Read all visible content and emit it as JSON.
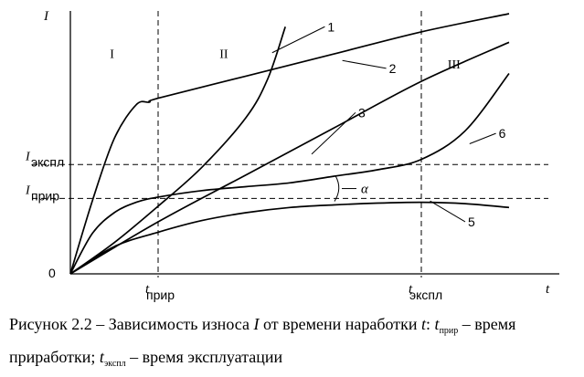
{
  "chart_data": {
    "type": "line",
    "title": "",
    "xlabel": "t",
    "ylabel": "I",
    "origin_label": "0",
    "xlim": [
      0,
      10
    ],
    "ylim": [
      0,
      10
    ],
    "grid": false,
    "legend": "none",
    "x_ticks": [
      {
        "x": 2.0,
        "main": "t",
        "sub": "прир"
      },
      {
        "x": 8.0,
        "main": "t",
        "sub": "экспл"
      }
    ],
    "y_ticks": [
      {
        "y": 4.2,
        "main": "I",
        "sub": "экспл"
      },
      {
        "y": 2.9,
        "main": "I",
        "sub": "прир"
      }
    ],
    "regions": [
      {
        "label": "I",
        "x": 0.9,
        "y": 8.3
      },
      {
        "label": "II",
        "x": 3.4,
        "y": 8.3
      },
      {
        "label": "III",
        "x": 8.6,
        "y": 7.9
      }
    ],
    "series": [
      {
        "name": "1",
        "points": [
          [
            0,
            0
          ],
          [
            1,
            1.2
          ],
          [
            2,
            2.6
          ],
          [
            3,
            4.1
          ],
          [
            4,
            6.0
          ],
          [
            4.5,
            7.5
          ],
          [
            4.9,
            9.5
          ]
        ]
      },
      {
        "name": "2",
        "points": [
          [
            0,
            0
          ],
          [
            0.5,
            2.8
          ],
          [
            1.0,
            5.2
          ],
          [
            1.5,
            6.5
          ],
          [
            1.8,
            6.6
          ],
          [
            2,
            6.75
          ],
          [
            4,
            7.6
          ],
          [
            6,
            8.45
          ],
          [
            8,
            9.3
          ],
          [
            10,
            10.0
          ]
        ]
      },
      {
        "name": "3",
        "points": [
          [
            0,
            0
          ],
          [
            2,
            2.0
          ],
          [
            4,
            3.8
          ],
          [
            6,
            5.6
          ],
          [
            8,
            7.4
          ],
          [
            10,
            8.9
          ]
        ]
      },
      {
        "name": "6",
        "points": [
          [
            0,
            0
          ],
          [
            0.5,
            1.55
          ],
          [
            1.0,
            2.35
          ],
          [
            1.5,
            2.75
          ],
          [
            2,
            2.95
          ],
          [
            3,
            3.2
          ],
          [
            4,
            3.35
          ],
          [
            5,
            3.5
          ],
          [
            6,
            3.75
          ],
          [
            7,
            4.0
          ],
          [
            8,
            4.4
          ],
          [
            9,
            5.5
          ],
          [
            10,
            7.7
          ]
        ]
      },
      {
        "name": "5",
        "points": [
          [
            0,
            0
          ],
          [
            1,
            1.05
          ],
          [
            2,
            1.6
          ],
          [
            3,
            2.05
          ],
          [
            4,
            2.35
          ],
          [
            5,
            2.55
          ],
          [
            6,
            2.65
          ],
          [
            7,
            2.72
          ],
          [
            8,
            2.75
          ],
          [
            9,
            2.7
          ],
          [
            10,
            2.55
          ]
        ]
      }
    ],
    "series_labels": [
      {
        "text": "1",
        "leader_from": [
          4.6,
          8.5
        ],
        "leader_to": [
          5.8,
          9.5
        ]
      },
      {
        "text": "2",
        "leader_from": [
          6.2,
          8.2
        ],
        "leader_to": [
          7.2,
          7.9
        ]
      },
      {
        "text": "3",
        "leader_from": [
          5.5,
          4.6
        ],
        "leader_to": [
          6.5,
          6.2
        ]
      },
      {
        "text": "6",
        "leader_from": [
          9.1,
          5.0
        ],
        "leader_to": [
          9.7,
          5.4
        ]
      },
      {
        "text": "5",
        "leader_from": [
          8.2,
          2.8
        ],
        "leader_to": [
          9.0,
          2.0
        ]
      }
    ],
    "angle_annotation": {
      "text": "α",
      "at": [
        6.0,
        3.7
      ]
    }
  },
  "caption": {
    "lead": "Рисунок 2.2 – Зависимость износа",
    "var_I": "I",
    "from_time": "от времени наработки",
    "var_t": "t",
    "colon": ":",
    "t_main": "t",
    "t_sub": "прир",
    "dash_time": "– время",
    "line2_start": "приработки;",
    "t2_main": "t",
    "t2_sub": "экспл",
    "line2_end": "– время эксплуатации"
  }
}
